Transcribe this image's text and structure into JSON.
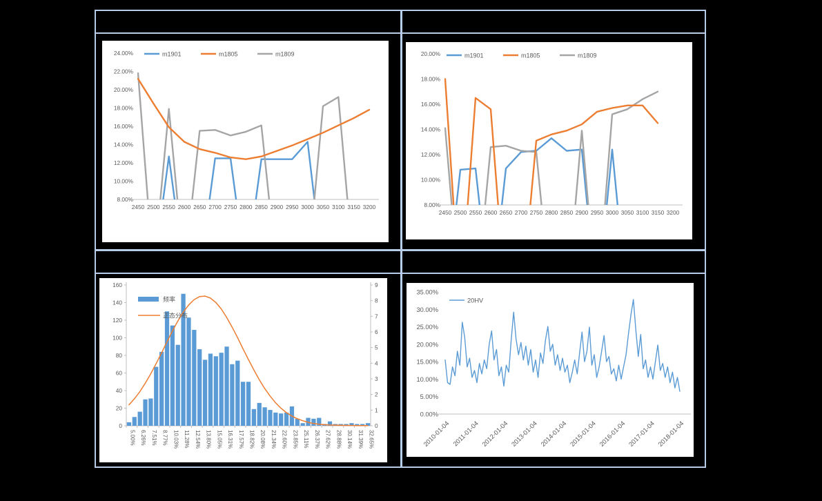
{
  "page": {
    "background_color": "#000000",
    "table_border_color": "#b7cde9",
    "text_color": "#595959",
    "axis_color": "#BFBFBF"
  },
  "table": {
    "header_row_1": {
      "left_cell": "",
      "right_cell": ""
    },
    "header_row_2": {
      "left_cell": "",
      "right_cell": ""
    }
  },
  "chart_data": [
    {
      "id": "smile-left",
      "type": "line",
      "title": "",
      "legend_position": "top-left-horizontal",
      "x_categories": [
        "2450",
        "2500",
        "2550",
        "2600",
        "2650",
        "2700",
        "2750",
        "2800",
        "2850",
        "2900",
        "2950",
        "3000",
        "3050",
        "3100",
        "3150",
        "3200"
      ],
      "y_axis": {
        "min": 8,
        "max": 24,
        "tick_values": [
          24,
          22,
          20,
          18,
          16,
          14,
          12,
          10,
          8
        ],
        "tick_labels": [
          "24.00%",
          "22.00%",
          "20.00%",
          "18.00%",
          "16.00%",
          "14.00%",
          "12.00%",
          "10.00%",
          "8.00%"
        ]
      },
      "series": [
        {
          "name": "m1901",
          "color": "#5B9BD5",
          "values": [
            0,
            0,
            12.7,
            0,
            0,
            12.5,
            12.5,
            0,
            12.4,
            12.4,
            12.4,
            14.3,
            0,
            0,
            0,
            0
          ]
        },
        {
          "name": "m1805",
          "color": "#ED7D31",
          "values": [
            21.2,
            18.5,
            15.9,
            14.3,
            13.5,
            13.1,
            12.6,
            12.4,
            12.7,
            13.3,
            13.9,
            14.6,
            15.3,
            16.1,
            16.9,
            17.8
          ]
        },
        {
          "name": "m1809",
          "color": "#A5A5A5",
          "values": [
            21.8,
            0,
            17.9,
            0,
            15.5,
            15.6,
            15.0,
            15.4,
            16.1,
            0,
            0,
            0,
            18.2,
            19.2,
            0,
            0
          ]
        }
      ]
    },
    {
      "id": "smile-right",
      "type": "line",
      "title": "",
      "legend_position": "top-left-horizontal",
      "x_categories": [
        "2450",
        "2500",
        "2550",
        "2600",
        "2650",
        "2700",
        "2750",
        "2800",
        "2850",
        "2900",
        "2950",
        "3000",
        "3050",
        "3100",
        "3150",
        "3200"
      ],
      "y_axis": {
        "min": 8,
        "max": 20,
        "tick_values": [
          20,
          18,
          16,
          14,
          12,
          10,
          8
        ],
        "tick_labels": [
          "20.00%",
          "18.00%",
          "16.00%",
          "14.00%",
          "12.00%",
          "10.00%",
          "8.00%"
        ]
      },
      "series": [
        {
          "name": "m1901",
          "color": "#5B9BD5",
          "values": [
            0,
            10.8,
            10.9,
            0,
            10.9,
            12.2,
            12.3,
            13.3,
            12.3,
            12.4,
            0,
            12.4,
            0,
            0,
            0,
            0
          ]
        },
        {
          "name": "m1805",
          "color": "#ED7D31",
          "values": [
            18.0,
            0,
            16.5,
            15.6,
            0,
            0,
            13.1,
            13.6,
            13.9,
            14.4,
            15.4,
            15.7,
            15.9,
            15.9,
            14.5,
            null
          ]
        },
        {
          "name": "m1809",
          "color": "#A5A5A5",
          "values": [
            14.1,
            0,
            0,
            12.6,
            12.7,
            12.3,
            12.2,
            0,
            0,
            13.9,
            0,
            15.2,
            15.6,
            16.4,
            17.0,
            null
          ]
        }
      ]
    },
    {
      "id": "histogram",
      "type": "histogram",
      "title": "",
      "legend_position": "top-left-vertical",
      "bars": {
        "name": "频率",
        "color": "#5B9BD5",
        "values": [
          4,
          10,
          16,
          30,
          31,
          67,
          84,
          130,
          114,
          92,
          150,
          123,
          109,
          87,
          75,
          82,
          79,
          83,
          90,
          70,
          74,
          50,
          50,
          19,
          26,
          21,
          18,
          15,
          14,
          15,
          22,
          8,
          3,
          9,
          8,
          9,
          2,
          5,
          2,
          2,
          2,
          3,
          2,
          2,
          3
        ]
      },
      "curve": {
        "name": "正态分布",
        "color": "#ED7D31",
        "values": [
          1.34,
          1.73,
          2.19,
          2.72,
          3.32,
          3.98,
          4.66,
          5.37,
          6.06,
          6.7,
          7.27,
          7.73,
          8.07,
          8.26,
          8.29,
          8.16,
          7.88,
          7.46,
          6.92,
          6.3,
          5.63,
          4.92,
          4.23,
          3.57,
          2.94,
          2.38,
          1.89,
          1.47,
          1.12,
          0.84,
          0.62,
          0.45,
          0.32,
          0.22,
          0.15,
          0.1,
          0.07,
          0.05,
          0.04,
          0.03,
          0.02,
          0.02,
          0.01,
          0.01,
          0.01
        ]
      },
      "y_left": {
        "min": 0,
        "max": 160,
        "tick_values": [
          160,
          140,
          120,
          100,
          80,
          60,
          40,
          20,
          0
        ],
        "tick_labels": [
          "160",
          "140",
          "120",
          "100",
          "80",
          "60",
          "40",
          "20",
          "0"
        ]
      },
      "y_right": {
        "min": 0,
        "max": 9,
        "tick_values": [
          9,
          8,
          7,
          6,
          5,
          4,
          3,
          2,
          1,
          0
        ],
        "tick_labels": [
          "9",
          "8",
          "7",
          "6",
          "5",
          "4",
          "3",
          "2",
          "1",
          "0"
        ]
      },
      "x_axis": {
        "label_every": 2,
        "labels": [
          "5.00%",
          "6.26%",
          "7.51%",
          "8.77%",
          "10.03%",
          "11.28%",
          "12.54%",
          "13.80%",
          "15.05%",
          "16.31%",
          "17.57%",
          "18.82%",
          "20.08%",
          "21.34%",
          "22.60%",
          "23.85%",
          "25.11%",
          "26.37%",
          "27.62%",
          "28.88%",
          "30.14%",
          "31.39%",
          "32.65%"
        ]
      }
    },
    {
      "id": "volatility",
      "type": "line-ts",
      "title": "",
      "legend_position": "top-left",
      "y_axis": {
        "min": 0,
        "max": 35,
        "tick_values": [
          35,
          30,
          25,
          20,
          15,
          10,
          5,
          0
        ],
        "tick_labels": [
          "35.00%",
          "30.00%",
          "25.00%",
          "20.00%",
          "15.00%",
          "10.00%",
          "5.00%",
          "0.00%"
        ]
      },
      "x_axis": {
        "tick_indices": [
          0,
          12,
          24,
          36,
          48,
          60,
          72,
          84,
          96
        ],
        "tick_labels": [
          "2010-01-04",
          "2011-01-04",
          "2012-01-04",
          "2013-01-04",
          "2014-01-04",
          "2015-01-04",
          "2016-01-04",
          "2017-01-04",
          "2018-01-04"
        ]
      },
      "series": [
        {
          "name": "20HV",
          "color": "#5B9BD5",
          "values": [
            15.5,
            9.0,
            8.5,
            13.5,
            11.0,
            18.0,
            14.0,
            26.3,
            22.0,
            13.5,
            16.0,
            10.5,
            12.5,
            9.0,
            14.5,
            11.5,
            15.5,
            13.0,
            20.0,
            23.8,
            15.5,
            18.5,
            11.0,
            13.5,
            8.0,
            14.0,
            12.0,
            21.0,
            29.2,
            21.5,
            17.0,
            20.5,
            15.5,
            19.5,
            14.0,
            18.5,
            12.0,
            15.5,
            10.5,
            17.5,
            14.5,
            21.0,
            25.1,
            18.0,
            20.0,
            14.0,
            17.0,
            12.5,
            16.0,
            12.0,
            14.0,
            9.0,
            12.0,
            15.5,
            11.5,
            17.5,
            23.5,
            15.0,
            18.0,
            24.9,
            14.0,
            17.0,
            10.5,
            13.5,
            18.0,
            22.5,
            15.0,
            16.5,
            11.5,
            13.0,
            9.5,
            14.0,
            10.0,
            13.5,
            17.0,
            23.0,
            28.5,
            32.8,
            24.0,
            16.5,
            22.8,
            13.0,
            15.5,
            10.5,
            13.5,
            10.0,
            15.0,
            19.8,
            12.5,
            14.5,
            10.5,
            13.5,
            9.0,
            12.0,
            7.5,
            10.5,
            6.5
          ]
        }
      ]
    }
  ]
}
